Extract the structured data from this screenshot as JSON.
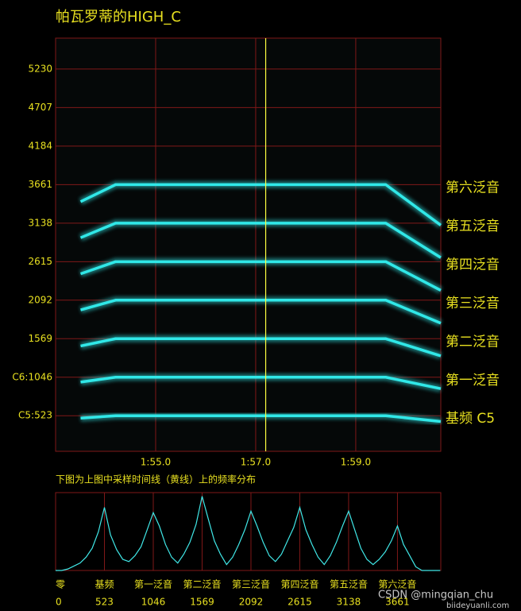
{
  "chart_data": [
    {
      "type": "line",
      "title": "帕瓦罗蒂的HIGH_C",
      "x": [
        113.5,
        114.2,
        119.6,
        120.7
      ],
      "series": [
        {
          "name": "基频 C5",
          "color": "#30e8e8",
          "values": [
            490,
            523,
            523,
            445
          ]
        },
        {
          "name": "第一泛音",
          "color": "#30e8e8",
          "values": [
            980,
            1046,
            1046,
            890
          ]
        },
        {
          "name": "第二泛音",
          "color": "#30e8e8",
          "values": [
            1470,
            1569,
            1569,
            1335
          ]
        },
        {
          "name": "第三泛音",
          "color": "#30e8e8",
          "values": [
            1960,
            2092,
            2092,
            1780
          ]
        },
        {
          "name": "第四泛音",
          "color": "#30e8e8",
          "values": [
            2450,
            2615,
            2615,
            2225
          ]
        },
        {
          "name": "第五泛音",
          "color": "#30e8e8",
          "values": [
            2940,
            3138,
            3138,
            2670
          ]
        },
        {
          "name": "第六泛音",
          "color": "#30e8e8",
          "values": [
            3430,
            3661,
            3661,
            3110
          ]
        }
      ],
      "xlim": [
        113.0,
        120.7
      ],
      "ylim": [
        40,
        5650
      ],
      "xticks": [
        {
          "value": 115,
          "label": "1:55.0"
        },
        {
          "value": 117,
          "label": "1:57.0"
        },
        {
          "value": 119,
          "label": "1:59.0"
        }
      ],
      "yticks": [
        {
          "value": 523,
          "label": "C5:523"
        },
        {
          "value": 1046,
          "label": "C6:1046"
        },
        1569,
        2092,
        2615,
        3138,
        3661,
        4184,
        4707,
        5230
      ],
      "grid": true,
      "cursor_x": 117.2,
      "cursor_color": "#ffff40"
    },
    {
      "type": "line",
      "title": "下图为上图中采样时间线（黄线）上的频率分布",
      "x": [
        0,
        65,
        131,
        196,
        262,
        327,
        392,
        458,
        523,
        588,
        654,
        719,
        785,
        850,
        915,
        981,
        1046,
        1111,
        1177,
        1242,
        1308,
        1373,
        1438,
        1504,
        1569,
        1634,
        1700,
        1765,
        1831,
        1896,
        1961,
        2027,
        2092,
        2157,
        2223,
        2288,
        2354,
        2419,
        2484,
        2550,
        2615,
        2680,
        2746,
        2811,
        2877,
        2942,
        3007,
        3073,
        3138,
        3203,
        3269,
        3334,
        3400,
        3465,
        3530,
        3596,
        3661,
        3726,
        3792,
        3857,
        3923,
        3988,
        4053,
        4119
      ],
      "values": [
        0,
        0,
        2,
        6,
        10,
        18,
        30,
        52,
        85,
        48,
        28,
        15,
        12,
        20,
        32,
        55,
        78,
        60,
        35,
        18,
        10,
        22,
        38,
        62,
        100,
        70,
        40,
        22,
        8,
        18,
        35,
        55,
        80,
        60,
        38,
        20,
        12,
        22,
        40,
        58,
        85,
        55,
        35,
        18,
        8,
        20,
        38,
        60,
        80,
        55,
        30,
        15,
        8,
        15,
        25,
        40,
        60,
        35,
        20,
        5,
        0,
        0,
        0,
        0
      ],
      "color": "#40e8e8",
      "xlim": [
        0,
        4125
      ],
      "ylim": [
        0,
        105
      ],
      "xticks": [
        0,
        523,
        1046,
        1569,
        2092,
        2615,
        3138,
        3661
      ],
      "xtick_names": [
        "零",
        "基频",
        "第一泛音",
        "第二泛音",
        "第三泛音",
        "第四泛音",
        "第五泛音",
        "第六泛音"
      ],
      "grid": true
    }
  ],
  "watermark": [
    "CSDN @mingqian_chu",
    "biideyuanli.com"
  ]
}
